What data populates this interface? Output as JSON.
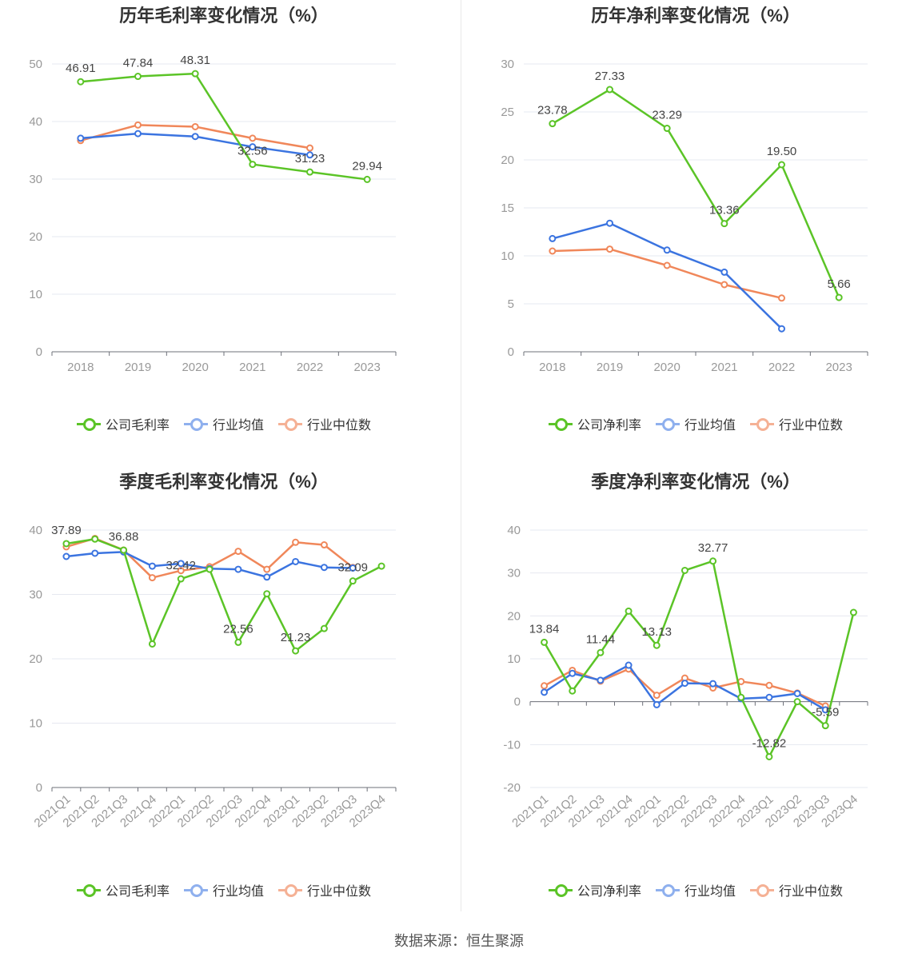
{
  "source_text": "数据来源：恒生聚源",
  "colors": {
    "company": "#5bc427",
    "avg": "#3b74e0",
    "median": "#f0875a",
    "grid": "#e6e8f0",
    "axis": "#999999"
  },
  "legend": {
    "gross": [
      "公司毛利率",
      "行业均值",
      "行业中位数"
    ],
    "net": [
      "公司净利率",
      "行业均值",
      "行业中位数"
    ]
  },
  "chart_data": [
    {
      "type": "line",
      "title": "历年毛利率变化情况（%）",
      "categories": [
        "2018",
        "2019",
        "2020",
        "2021",
        "2022",
        "2023"
      ],
      "ylim": [
        0,
        50
      ],
      "yticks": [
        0,
        10,
        20,
        30,
        40,
        50
      ],
      "series": [
        {
          "name": "公司毛利率",
          "values": [
            46.91,
            47.84,
            48.31,
            32.56,
            31.23,
            29.94
          ]
        },
        {
          "name": "行业均值",
          "values": [
            37.1,
            37.9,
            37.4,
            35.6,
            34.2,
            null
          ]
        },
        {
          "name": "行业中位数",
          "values": [
            36.7,
            39.4,
            39.1,
            37.1,
            35.4,
            null
          ]
        }
      ],
      "labels": [
        "46.91",
        "47.84",
        "48.31",
        "32.56",
        "31.23",
        "29.94"
      ]
    },
    {
      "type": "line",
      "title": "历年净利率变化情况（%）",
      "categories": [
        "2018",
        "2019",
        "2020",
        "2021",
        "2022",
        "2023"
      ],
      "ylim": [
        0,
        30
      ],
      "yticks": [
        0,
        5,
        10,
        15,
        20,
        25,
        30
      ],
      "series": [
        {
          "name": "公司净利率",
          "values": [
            23.78,
            27.33,
            23.29,
            13.36,
            19.5,
            5.66
          ]
        },
        {
          "name": "行业均值",
          "values": [
            11.8,
            13.4,
            10.6,
            8.3,
            2.4,
            null
          ]
        },
        {
          "name": "行业中位数",
          "values": [
            10.5,
            10.7,
            9.0,
            7.0,
            5.6,
            null
          ]
        }
      ],
      "labels": [
        "23.78",
        "27.33",
        "23.29",
        "13.36",
        "19.50",
        "5.66"
      ]
    },
    {
      "type": "line",
      "title": "季度毛利率变化情况（%）",
      "categories": [
        "2021Q1",
        "2021Q2",
        "2021Q3",
        "2021Q4",
        "2022Q1",
        "2022Q2",
        "2022Q3",
        "2022Q4",
        "2023Q1",
        "2023Q2",
        "2023Q3",
        "2023Q4"
      ],
      "ylim": [
        0,
        40
      ],
      "yticks": [
        0,
        10,
        20,
        30,
        40
      ],
      "series": [
        {
          "name": "公司毛利率",
          "values": [
            37.89,
            38.6,
            36.88,
            22.3,
            32.42,
            33.9,
            22.56,
            30.1,
            21.23,
            24.7,
            32.09,
            34.4
          ]
        },
        {
          "name": "行业均值",
          "values": [
            35.9,
            36.4,
            36.6,
            34.4,
            34.8,
            34.0,
            33.9,
            32.7,
            35.1,
            34.2,
            34.1,
            null
          ]
        },
        {
          "name": "行业中位数",
          "values": [
            37.4,
            38.7,
            36.9,
            32.6,
            33.7,
            34.3,
            36.7,
            33.9,
            38.1,
            37.7,
            34.2,
            null
          ]
        }
      ],
      "labels": [
        "37.89",
        "",
        "36.88",
        "",
        "32.42",
        "",
        "22.56",
        "",
        "21.23",
        "",
        "32.09",
        ""
      ]
    },
    {
      "type": "line",
      "title": "季度净利率变化情况（%）",
      "categories": [
        "2021Q1",
        "2021Q2",
        "2021Q3",
        "2021Q4",
        "2022Q1",
        "2022Q2",
        "2022Q3",
        "2022Q4",
        "2023Q1",
        "2023Q2",
        "2023Q3",
        "2023Q4"
      ],
      "ylim": [
        -20,
        40
      ],
      "yticks": [
        -20,
        -10,
        0,
        10,
        20,
        30,
        40
      ],
      "series": [
        {
          "name": "公司净利率",
          "values": [
            13.84,
            2.5,
            11.44,
            21.1,
            13.13,
            30.6,
            32.77,
            1.0,
            -12.82,
            0.0,
            -5.59,
            20.8
          ]
        },
        {
          "name": "行业均值",
          "values": [
            2.2,
            6.6,
            5.0,
            8.5,
            -0.7,
            4.3,
            4.2,
            0.7,
            1.0,
            1.9,
            -1.9,
            null
          ]
        },
        {
          "name": "行业中位数",
          "values": [
            3.7,
            7.3,
            4.8,
            7.6,
            1.5,
            5.5,
            3.2,
            4.7,
            3.8,
            2.0,
            -1.0,
            null
          ]
        }
      ],
      "labels": [
        "13.84",
        "",
        "11.44",
        "",
        "13.13",
        "",
        "32.77",
        "",
        "-12.82",
        "",
        "-5.59",
        ""
      ]
    }
  ]
}
